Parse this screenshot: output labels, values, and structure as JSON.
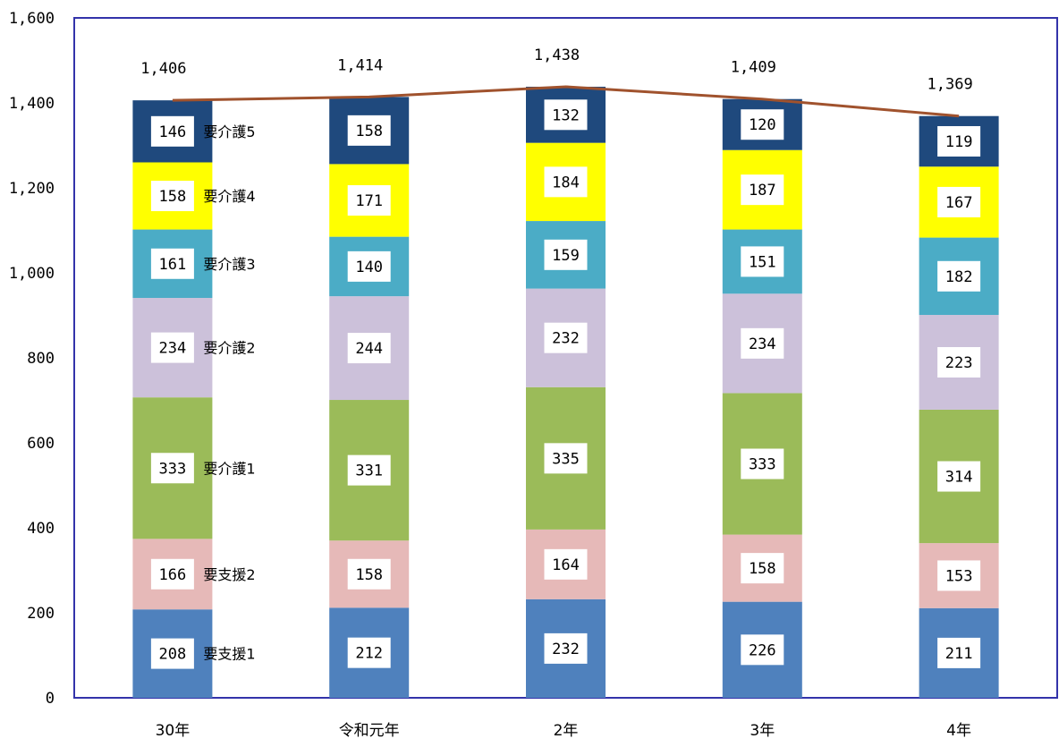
{
  "chart_data": {
    "type": "bar",
    "stacked": true,
    "categories": [
      "30年",
      "令和元年",
      "2年",
      "3年",
      "4年"
    ],
    "ylim": [
      0,
      1600
    ],
    "yticks": [
      "0",
      "200",
      "400",
      "600",
      "800",
      "1,000",
      "1,200",
      "1,400",
      "1,600"
    ],
    "ytick_values": [
      0,
      200,
      400,
      600,
      800,
      1000,
      1200,
      1400,
      1600
    ],
    "series": [
      {
        "name": "要支援1",
        "color": "#4f81bd",
        "values": [
          208,
          212,
          232,
          226,
          211
        ]
      },
      {
        "name": "要支援2",
        "color": "#e6b9b8",
        "values": [
          166,
          158,
          164,
          158,
          153
        ]
      },
      {
        "name": "要介護1",
        "color": "#9bbb59",
        "values": [
          333,
          331,
          335,
          333,
          314
        ]
      },
      {
        "name": "要介護2",
        "color": "#ccc1da",
        "values": [
          234,
          244,
          232,
          234,
          223
        ]
      },
      {
        "name": "要介護3",
        "color": "#4bacc6",
        "values": [
          161,
          140,
          159,
          151,
          182
        ]
      },
      {
        "name": "要介護4",
        "color": "#ffff00",
        "values": [
          158,
          171,
          184,
          187,
          167
        ]
      },
      {
        "name": "要介護5",
        "color": "#1f497d",
        "values": [
          146,
          158,
          132,
          120,
          119
        ]
      }
    ],
    "totals": {
      "values": [
        1406,
        1414,
        1438,
        1409,
        1369
      ],
      "labels": [
        "1,406",
        "1,414",
        "1,438",
        "1,409",
        "1,369"
      ],
      "line_color": "#a0522d"
    },
    "legend_placement": "inline-right-of-first-bar",
    "grid": false,
    "frame_color": "#3333aa"
  }
}
